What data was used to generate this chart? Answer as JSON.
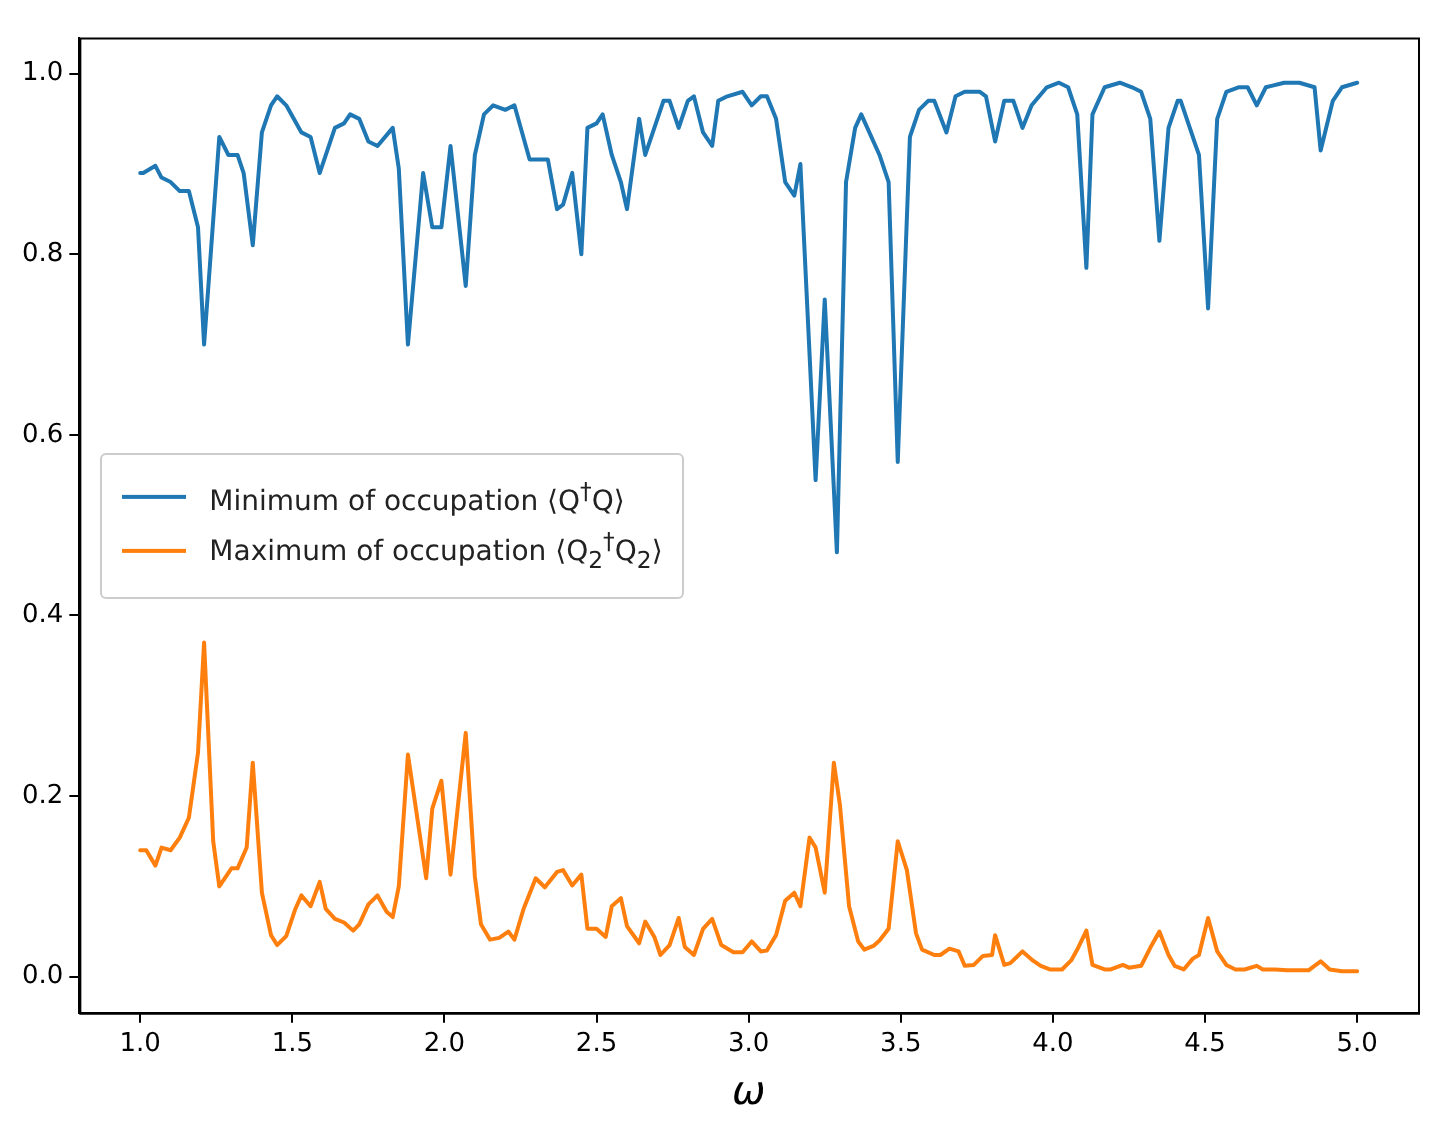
{
  "chart_data": {
    "type": "line",
    "xlabel": "ω",
    "xlim": [
      0.8,
      5.2
    ],
    "ylim": [
      -0.04,
      1.04
    ],
    "xticks": [
      {
        "value": 1,
        "label": "1.0"
      },
      {
        "value": 1.5,
        "label": "1.5"
      },
      {
        "value": 2,
        "label": "2.0"
      },
      {
        "value": 2.5,
        "label": "2.5"
      },
      {
        "value": 3,
        "label": "3.0"
      },
      {
        "value": 3.5,
        "label": "3.5"
      },
      {
        "value": 4,
        "label": "4.0"
      },
      {
        "value": 4.5,
        "label": "4.5"
      },
      {
        "value": 5,
        "label": "5.0"
      }
    ],
    "yticks": [
      {
        "value": 0,
        "label": "0.0"
      },
      {
        "value": 0.2,
        "label": "0.2"
      },
      {
        "value": 0.4,
        "label": "0.4"
      },
      {
        "value": 0.6,
        "label": "0.6"
      },
      {
        "value": 0.8,
        "label": "0.8"
      },
      {
        "value": 1,
        "label": "1.0"
      }
    ],
    "grid": false,
    "legend": "center left",
    "marker": "none",
    "line_style": "solid",
    "series": [
      {
        "name": "Minimum of occupation ⟨Q$^{†}$Q⟩",
        "color": "#1f77b4",
        "x": [
          1.0,
          1.01,
          1.05,
          1.07,
          1.1,
          1.13,
          1.16,
          1.19,
          1.21,
          1.26,
          1.29,
          1.32,
          1.34,
          1.37,
          1.4,
          1.43,
          1.45,
          1.48,
          1.53,
          1.56,
          1.59,
          1.64,
          1.67,
          1.69,
          1.72,
          1.75,
          1.78,
          1.83,
          1.85,
          1.88,
          1.93,
          1.96,
          1.99,
          2.02,
          2.07,
          2.1,
          2.13,
          2.16,
          2.2,
          2.23,
          2.28,
          2.34,
          2.37,
          2.39,
          2.42,
          2.45,
          2.47,
          2.5,
          2.52,
          2.55,
          2.58,
          2.6,
          2.64,
          2.66,
          2.72,
          2.74,
          2.77,
          2.8,
          2.82,
          2.85,
          2.88,
          2.9,
          2.93,
          2.98,
          3.01,
          3.04,
          3.06,
          3.09,
          3.12,
          3.15,
          3.17,
          3.22,
          3.25,
          3.29,
          3.32,
          3.35,
          3.37,
          3.43,
          3.46,
          3.49,
          3.53,
          3.56,
          3.59,
          3.61,
          3.65,
          3.68,
          3.71,
          3.76,
          3.78,
          3.81,
          3.84,
          3.87,
          3.9,
          3.93,
          3.98,
          4.02,
          4.05,
          4.08,
          4.11,
          4.13,
          4.17,
          4.22,
          4.26,
          4.29,
          4.32,
          4.35,
          4.38,
          4.41,
          4.42,
          4.48,
          4.51,
          4.54,
          4.57,
          4.61,
          4.64,
          4.67,
          4.7,
          4.76,
          4.81,
          4.86,
          4.88,
          4.92,
          4.95,
          5.0
        ],
        "values": [
          0.89,
          0.89,
          0.898,
          0.885,
          0.88,
          0.87,
          0.87,
          0.83,
          0.7,
          0.93,
          0.91,
          0.91,
          0.89,
          0.81,
          0.935,
          0.965,
          0.975,
          0.965,
          0.935,
          0.93,
          0.89,
          0.94,
          0.945,
          0.955,
          0.95,
          0.925,
          0.92,
          0.94,
          0.895,
          0.7,
          0.89,
          0.83,
          0.83,
          0.92,
          0.765,
          0.91,
          0.955,
          0.965,
          0.96,
          0.965,
          0.905,
          0.905,
          0.85,
          0.855,
          0.89,
          0.8,
          0.94,
          0.945,
          0.955,
          0.91,
          0.88,
          0.85,
          0.95,
          0.91,
          0.97,
          0.97,
          0.94,
          0.97,
          0.975,
          0.935,
          0.92,
          0.97,
          0.975,
          0.98,
          0.965,
          0.975,
          0.975,
          0.95,
          0.88,
          0.865,
          0.9,
          0.55,
          0.75,
          0.47,
          0.88,
          0.94,
          0.955,
          0.91,
          0.88,
          0.57,
          0.93,
          0.96,
          0.97,
          0.97,
          0.935,
          0.975,
          0.98,
          0.98,
          0.975,
          0.925,
          0.97,
          0.97,
          0.94,
          0.965,
          0.985,
          0.99,
          0.985,
          0.955,
          0.785,
          0.955,
          0.985,
          0.99,
          0.985,
          0.98,
          0.95,
          0.815,
          0.94,
          0.97,
          0.97,
          0.91,
          0.74,
          0.95,
          0.98,
          0.985,
          0.985,
          0.965,
          0.985,
          0.99,
          0.99,
          0.985,
          0.915,
          0.97,
          0.985,
          0.99
        ]
      },
      {
        "name": "Maximum of occupation ⟨Q$_{2}$$^{†}$Q$_{2}$⟩",
        "color": "#ff7f0e",
        "x": [
          1.0,
          1.02,
          1.05,
          1.07,
          1.1,
          1.13,
          1.16,
          1.19,
          1.21,
          1.24,
          1.26,
          1.3,
          1.32,
          1.35,
          1.37,
          1.4,
          1.43,
          1.45,
          1.48,
          1.51,
          1.53,
          1.56,
          1.59,
          1.61,
          1.64,
          1.67,
          1.7,
          1.72,
          1.75,
          1.78,
          1.81,
          1.83,
          1.85,
          1.88,
          1.94,
          1.96,
          1.99,
          2.02,
          2.07,
          2.1,
          2.12,
          2.15,
          2.18,
          2.21,
          2.23,
          2.26,
          2.3,
          2.33,
          2.37,
          2.39,
          2.42,
          2.45,
          2.47,
          2.5,
          2.53,
          2.55,
          2.58,
          2.6,
          2.64,
          2.66,
          2.69,
          2.71,
          2.74,
          2.77,
          2.79,
          2.82,
          2.85,
          2.88,
          2.91,
          2.95,
          2.98,
          3.01,
          3.04,
          3.06,
          3.09,
          3.12,
          3.15,
          3.17,
          3.2,
          3.22,
          3.25,
          3.28,
          3.3,
          3.33,
          3.36,
          3.38,
          3.41,
          3.43,
          3.46,
          3.49,
          3.52,
          3.55,
          3.57,
          3.61,
          3.63,
          3.66,
          3.69,
          3.71,
          3.74,
          3.77,
          3.8,
          3.81,
          3.84,
          3.86,
          3.9,
          3.93,
          3.96,
          3.99,
          4.03,
          4.06,
          4.08,
          4.11,
          4.13,
          4.17,
          4.19,
          4.23,
          4.25,
          4.29,
          4.32,
          4.35,
          4.38,
          4.4,
          4.43,
          4.46,
          4.48,
          4.51,
          4.54,
          4.57,
          4.6,
          4.63,
          4.67,
          4.69,
          4.73,
          4.77,
          4.81,
          4.84,
          4.88,
          4.91,
          4.95,
          5.0
        ],
        "values": [
          0.14,
          0.14,
          0.123,
          0.143,
          0.14,
          0.154,
          0.176,
          0.248,
          0.37,
          0.15,
          0.1,
          0.12,
          0.12,
          0.143,
          0.237,
          0.093,
          0.046,
          0.035,
          0.045,
          0.075,
          0.09,
          0.078,
          0.105,
          0.075,
          0.064,
          0.06,
          0.051,
          0.058,
          0.08,
          0.09,
          0.072,
          0.066,
          0.1,
          0.246,
          0.109,
          0.186,
          0.217,
          0.113,
          0.27,
          0.111,
          0.058,
          0.041,
          0.043,
          0.05,
          0.041,
          0.075,
          0.109,
          0.099,
          0.116,
          0.118,
          0.101,
          0.113,
          0.053,
          0.053,
          0.044,
          0.078,
          0.087,
          0.056,
          0.037,
          0.061,
          0.044,
          0.024,
          0.035,
          0.065,
          0.033,
          0.024,
          0.053,
          0.064,
          0.035,
          0.027,
          0.027,
          0.039,
          0.028,
          0.029,
          0.046,
          0.084,
          0.093,
          0.078,
          0.154,
          0.143,
          0.093,
          0.237,
          0.19,
          0.078,
          0.039,
          0.03,
          0.034,
          0.04,
          0.053,
          0.15,
          0.118,
          0.048,
          0.03,
          0.024,
          0.024,
          0.031,
          0.028,
          0.012,
          0.013,
          0.023,
          0.024,
          0.046,
          0.013,
          0.015,
          0.028,
          0.019,
          0.012,
          0.008,
          0.008,
          0.018,
          0.03,
          0.051,
          0.013,
          0.008,
          0.008,
          0.013,
          0.01,
          0.012,
          0.032,
          0.05,
          0.024,
          0.012,
          0.008,
          0.02,
          0.024,
          0.065,
          0.028,
          0.013,
          0.008,
          0.008,
          0.012,
          0.008,
          0.008,
          0.007,
          0.007,
          0.007,
          0.017,
          0.008,
          0.006,
          0.006
        ]
      }
    ]
  }
}
